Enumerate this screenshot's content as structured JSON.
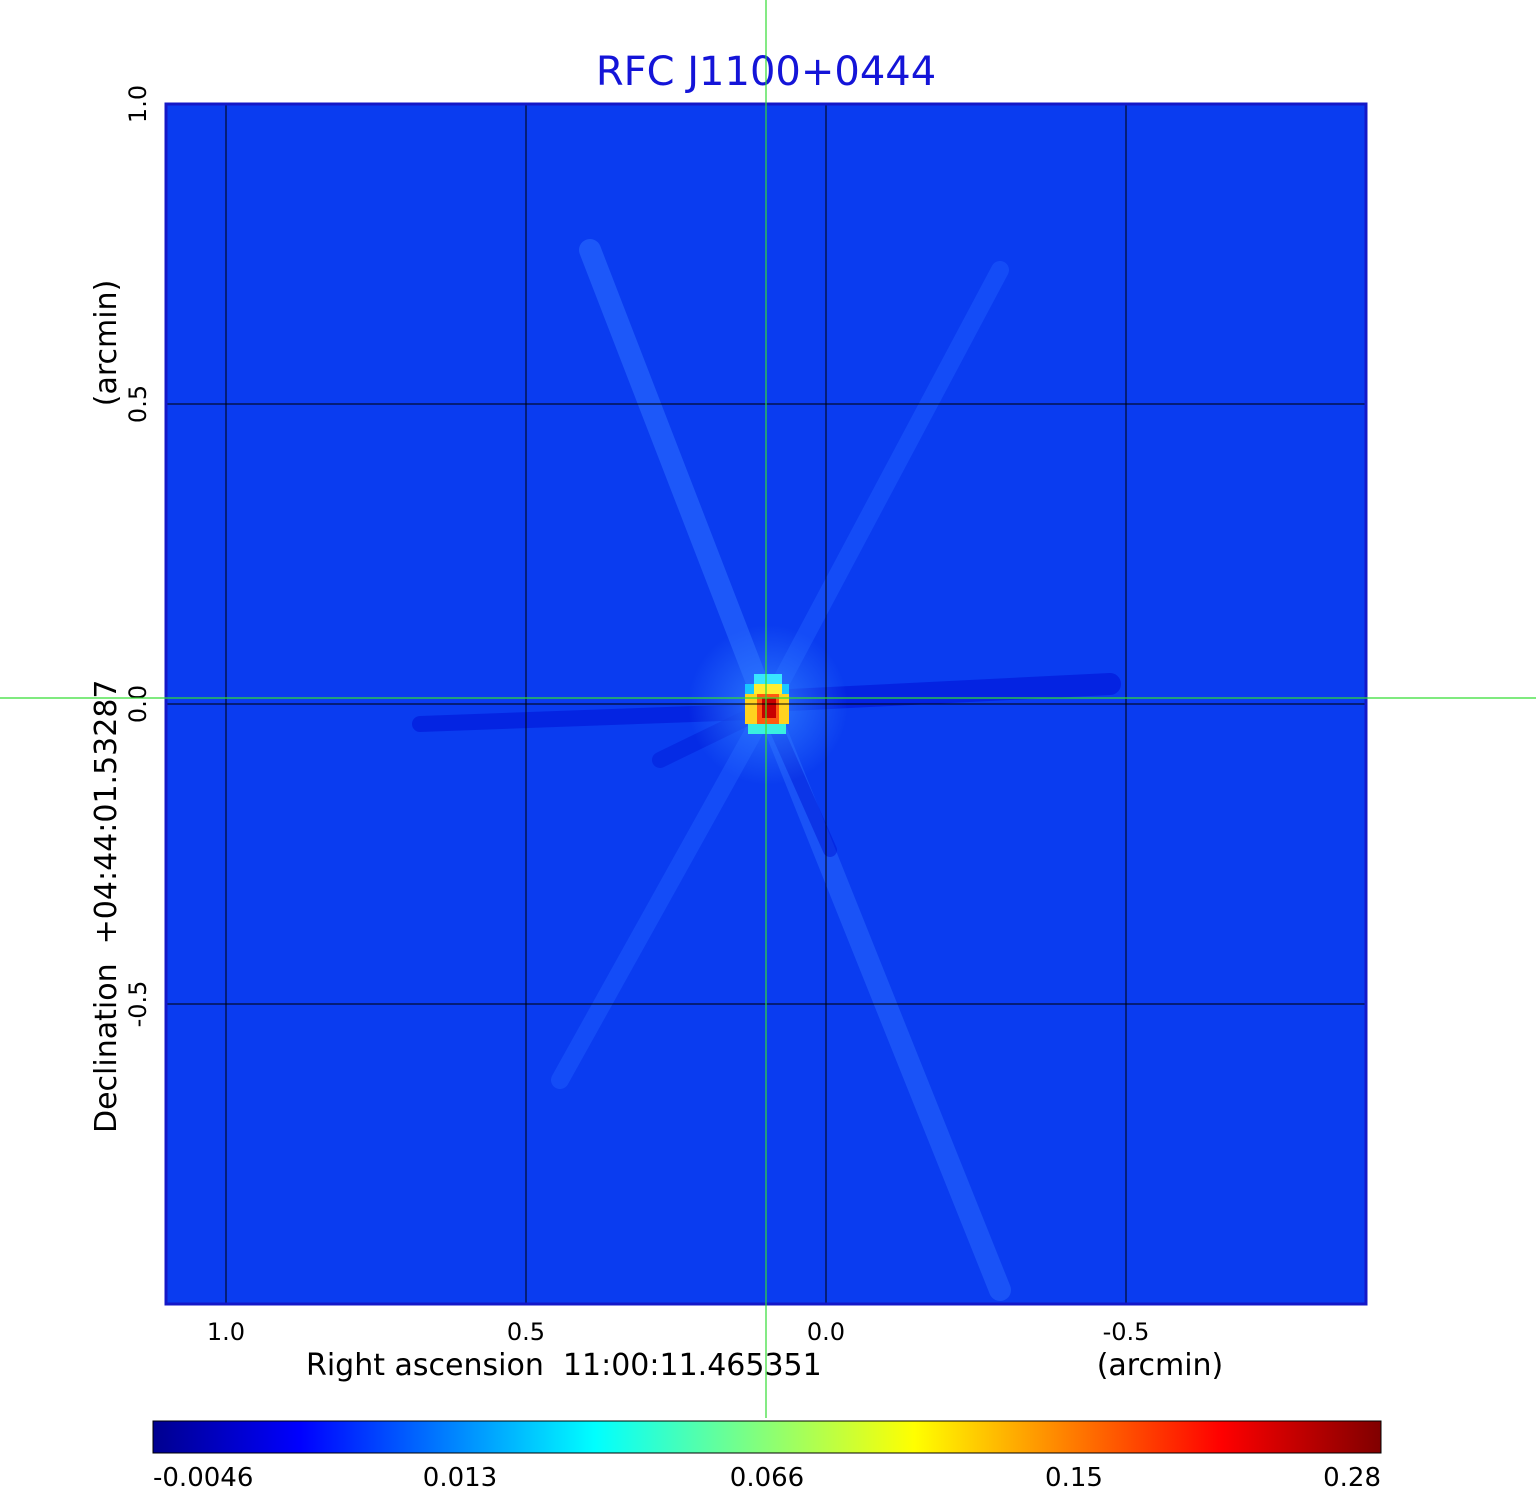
{
  "chart_data": {
    "type": "heatmap",
    "title": "RFC J1100+0444",
    "xlabel": "Right ascension  11:00:11.465351",
    "xunit": "(arcmin)",
    "ylabel": "Declination  +04:44:01.53287",
    "yunit": "(arcmin)",
    "xlim": [
      1.1,
      -0.9
    ],
    "ylim": [
      -1.0,
      1.0
    ],
    "x_ticks": [
      1.0,
      0.5,
      0.0,
      -0.5
    ],
    "x_tick_labels": [
      "1.0",
      "0.5",
      "0.0",
      "-0.5"
    ],
    "y_ticks": [
      1.0,
      0.5,
      0.0,
      -0.5
    ],
    "y_tick_labels": [
      "1.0",
      "0.5",
      "0.0",
      "-0.5"
    ],
    "grid": true,
    "colormap": "jet",
    "colorbar_ticks": [
      "-0.0046",
      "0.013",
      "0.066",
      "0.15",
      "0.28"
    ],
    "background_color": "#0a3cf0",
    "peak": {
      "x": 0.1,
      "y": 0.01,
      "value": 0.28
    },
    "crosshair": {
      "x": 0.1,
      "y": 0.01,
      "color": "#33dd33"
    }
  }
}
